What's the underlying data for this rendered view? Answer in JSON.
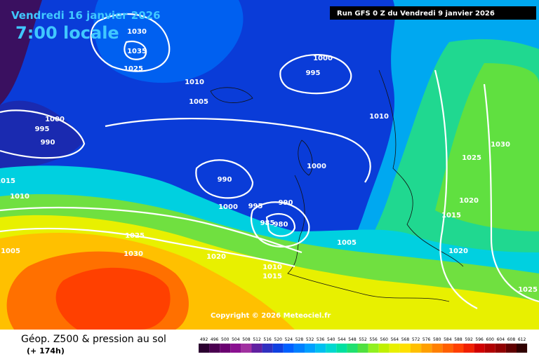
{
  "header": {
    "date": "Vendredi 16 janvier 2026",
    "time": "7:00 locale",
    "run": "Run GFS 0 Z du Vendredi 9 janvier 2026"
  },
  "isobar_labels": [
    "1030",
    "1035",
    "1025",
    "1010",
    "1005",
    "1000",
    "995",
    "1000",
    "995",
    "990",
    "1010",
    "1000",
    "990",
    "1000",
    "995",
    "990",
    "985",
    "980",
    "1005",
    "1025",
    "1030",
    "1020",
    "1005",
    "1015",
    "1010",
    "1010",
    "1015",
    "1030",
    "1025",
    "1020",
    "1015",
    "1020",
    "1025"
  ],
  "copyright": "Copyright © 2026 Meteociel.fr",
  "footer": {
    "title": "Géop. Z500 & pression au sol",
    "lead": "(+ 174h)"
  },
  "scale": {
    "values": [
      492,
      496,
      500,
      504,
      508,
      512,
      516,
      520,
      524,
      528,
      532,
      536,
      540,
      544,
      548,
      552,
      556,
      560,
      564,
      568,
      572,
      576,
      580,
      584,
      588,
      592,
      596,
      600,
      604,
      608,
      612
    ],
    "colors": [
      "#2b0030",
      "#4a0050",
      "#6a0070",
      "#8a1090",
      "#a030a0",
      "#6020a0",
      "#3030c0",
      "#1040e0",
      "#0060ff",
      "#0080ff",
      "#00a0ff",
      "#00c0f0",
      "#00d8d0",
      "#00e0a0",
      "#20e070",
      "#50e040",
      "#90f020",
      "#c0f000",
      "#e8f000",
      "#ffe000",
      "#ffc000",
      "#ffa000",
      "#ff8000",
      "#ff6000",
      "#ff4000",
      "#f02000",
      "#d00000",
      "#b00000",
      "#900000",
      "#600000",
      "#300000"
    ]
  }
}
